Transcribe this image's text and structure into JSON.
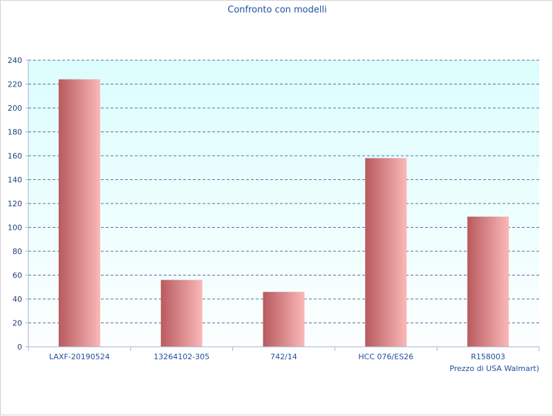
{
  "chart_data": {
    "type": "bar",
    "title": "Confronto con modelli",
    "xlabel": "Prezzo di USA Walmart)",
    "ylabel": "",
    "categories": [
      "LAXF-20190524",
      "13264102-305",
      "742/14",
      "HCC 076/ES26",
      "R158003"
    ],
    "values": [
      224,
      56,
      46,
      158,
      109
    ],
    "ylim": [
      0,
      240
    ],
    "yticks": [
      0,
      20,
      40,
      60,
      80,
      100,
      120,
      140,
      160,
      180,
      200,
      220,
      240
    ],
    "grid": true,
    "legend": "none"
  },
  "colors": {
    "title": "#1f4e9e",
    "bar_dark": "#b85a5e",
    "bar_light": "#fbb8b8",
    "plot_bg_top": "#dcfdfd",
    "plot_bg_bottom": "#fcfefe",
    "grid": "#1f3f7a",
    "axis": "#9cb4d8"
  }
}
